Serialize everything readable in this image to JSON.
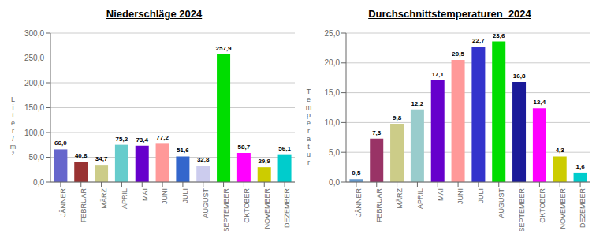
{
  "chart_data": [
    {
      "type": "bar",
      "title": "Niederschläge 2024",
      "ylabel": "L\ni\nt\ne\nr\n/\nm\n²",
      "categories": [
        "JÄNNER",
        "FEBRUAR",
        "MÄRZ",
        "APRIL",
        "MAI",
        "JUNI",
        "JULI",
        "AUGUST",
        "SEPTEMBER",
        "OKTOBER",
        "NOVEMBER",
        "DEZEMBER"
      ],
      "values": [
        66.0,
        40.8,
        34.7,
        75.2,
        73.4,
        77.2,
        51.6,
        32.8,
        257.9,
        58.7,
        29.9,
        56.1
      ],
      "value_labels": [
        "66,0",
        "40,8",
        "34,7",
        "75,2",
        "73,4",
        "77,2",
        "51,6",
        "32,8",
        "257,9",
        "58,7",
        "29,9",
        "56,1"
      ],
      "data_labels": true,
      "colors": [
        "#6666cc",
        "#993333",
        "#cccc88",
        "#66cccc",
        "#6600cc",
        "#ff9999",
        "#3366cc",
        "#ccccee",
        "#00dd00",
        "#ff00ff",
        "#cccc00",
        "#00cccc"
      ],
      "ylim": [
        0,
        300
      ],
      "yticks": [
        {
          "value": 0,
          "label": "0,0"
        },
        {
          "value": 50,
          "label": "50,0"
        },
        {
          "value": 100,
          "label": "100,0"
        },
        {
          "value": 150,
          "label": "150,0"
        },
        {
          "value": 200,
          "label": "200,0"
        },
        {
          "value": 250,
          "label": "250,0"
        },
        {
          "value": 300,
          "label": "300,0"
        }
      ],
      "grid": true
    },
    {
      "type": "bar",
      "title": "Durchschnittstemperaturen  2024",
      "ylabel": "T\ne\nm\np\ne\nr\na\nt\nu\nr",
      "categories": [
        "JÄNNER",
        "FEBRUAR",
        "MÄRZ",
        "APRIL",
        "MAI",
        "JUNI",
        "JULI",
        "AUGUST",
        "SEPTEMBER",
        "OKTOBER",
        "NOVEMBER",
        "DEZEMBER"
      ],
      "values": [
        0.5,
        7.3,
        9.8,
        12.2,
        17.1,
        20.5,
        22.7,
        23.6,
        16.8,
        12.4,
        4.3,
        1.6
      ],
      "value_labels": [
        "0,5",
        "7,3",
        "9,8",
        "12,2",
        "17,1",
        "20,5",
        "22,7",
        "23,6",
        "16,8",
        "12,4",
        "4,3",
        "1,6"
      ],
      "data_labels": true,
      "colors": [
        "#6699cc",
        "#993366",
        "#cccc88",
        "#99cccc",
        "#6600cc",
        "#ff9999",
        "#3333cc",
        "#00dd00",
        "#1a1a99",
        "#ff00ff",
        "#cccc00",
        "#00cccc"
      ],
      "ylim": [
        0,
        25
      ],
      "yticks": [
        {
          "value": 0,
          "label": "0,0"
        },
        {
          "value": 5,
          "label": "5,0"
        },
        {
          "value": 10,
          "label": "10,0"
        },
        {
          "value": 15,
          "label": "15,0"
        },
        {
          "value": 20,
          "label": "20,0"
        },
        {
          "value": 25,
          "label": "25,0"
        }
      ],
      "grid": true
    }
  ]
}
